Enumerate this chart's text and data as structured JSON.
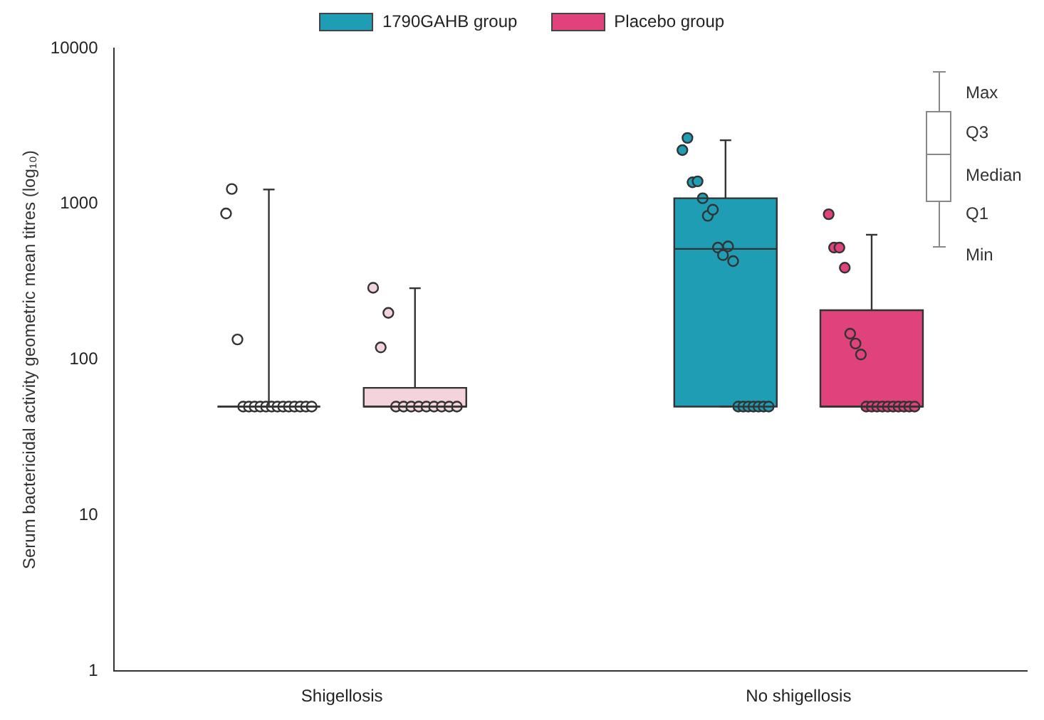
{
  "chart_data": {
    "type": "box",
    "ylabel": "Serum bactericidal activity geometric mean titres (log₁₀)",
    "categories": [
      "Shigellosis",
      "No shigellosis"
    ],
    "ylim": [
      1,
      10000
    ],
    "yticks": [
      1,
      10,
      100,
      1000,
      10000
    ],
    "log": true,
    "grid": false,
    "legend": "top",
    "marker": "circle",
    "annotations": [
      "Max",
      "Q3",
      "Median",
      "Q1",
      "Min"
    ],
    "series": [
      {
        "name": "1790GAHB group",
        "color": "#1e9db5",
        "colors": [
          "#ffffff",
          "#1e9db5"
        ],
        "boxes": [
          {
            "low": 50,
            "q1": 50,
            "median": 50,
            "q3": 50,
            "high": 1240,
            "outliers": [
              870,
              1250,
              135,
              50,
              50,
              50,
              50,
              50,
              50,
              50,
              50,
              50,
              50,
              50,
              50,
              50
            ]
          },
          {
            "low": 50,
            "q1": 50,
            "median": 515,
            "q3": 1090,
            "high": 2570,
            "outliers": [
              2220,
              2660,
              1380,
              1400,
              1090,
              840,
              920,
              525,
              470,
              535,
              430,
              50,
              50,
              50,
              50,
              50,
              50,
              50
            ]
          }
        ]
      },
      {
        "name": "Placebo group",
        "color": "#e0427b",
        "colors": [
          "#f3d3dc",
          "#e0427b"
        ],
        "boxes": [
          {
            "low": 50,
            "q1": 50,
            "median": 50,
            "q3": 66,
            "high": 288,
            "outliers": [
              290,
              120,
              200,
              50,
              50,
              50,
              50,
              50,
              50,
              50,
              50,
              50
            ]
          },
          {
            "low": 50,
            "q1": 50,
            "median": 50,
            "q3": 208,
            "high": 635,
            "outliers": [
              860,
              525,
              525,
              390,
              147,
              127,
              108,
              50,
              50,
              50,
              50,
              50,
              50,
              50,
              50,
              50,
              50
            ]
          }
        ]
      }
    ]
  }
}
